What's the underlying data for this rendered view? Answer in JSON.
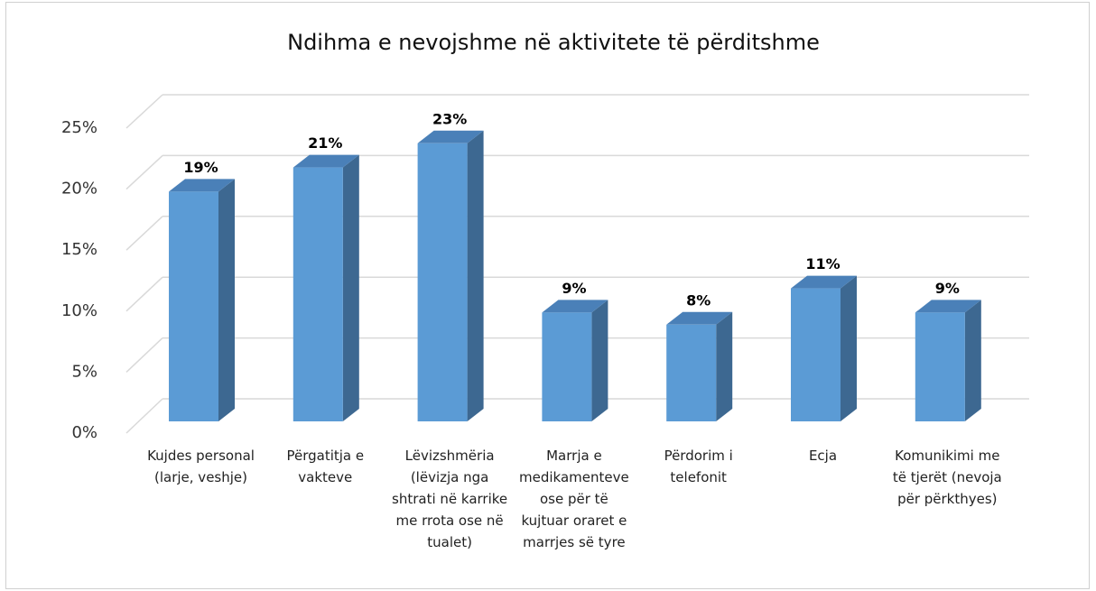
{
  "chart_data": {
    "type": "bar3d",
    "title": "Ndihma e nevojshme në aktivitete të përditshme",
    "categories": [
      "Kujdes personal (larje, veshje)",
      "Përgatitja e vakteve",
      "Lëvizshmëria (lëvizja nga shtrati në karrike me rrota ose në tualet)",
      "Marrja e medikamenteve ose për të kujtuar oraret e marrjes së tyre",
      "Përdorim i telefonit",
      "Ecja",
      "Komunikimi me të tjerët (nevoja për përkthyes)"
    ],
    "values": [
      19,
      21,
      23,
      9,
      8,
      11,
      9
    ],
    "value_labels": [
      "19%",
      "21%",
      "23%",
      "9%",
      "8%",
      "11%",
      "9%"
    ],
    "color": "#5b9bd5",
    "ylim": [
      0,
      25
    ],
    "yticks": [
      {
        "value": 0,
        "label": "0%"
      },
      {
        "value": 5,
        "label": "5%"
      },
      {
        "value": 10,
        "label": "10%"
      },
      {
        "value": 15,
        "label": "15%"
      },
      {
        "value": 20,
        "label": "20%"
      },
      {
        "value": 25,
        "label": "25%"
      }
    ],
    "grid": true
  }
}
